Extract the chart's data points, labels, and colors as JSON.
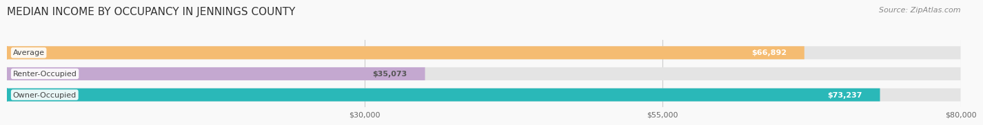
{
  "title": "MEDIAN INCOME BY OCCUPANCY IN JENNINGS COUNTY",
  "source": "Source: ZipAtlas.com",
  "categories": [
    "Owner-Occupied",
    "Renter-Occupied",
    "Average"
  ],
  "values": [
    73237,
    35073,
    66892
  ],
  "bar_colors": [
    "#2ab8b8",
    "#c4a8d0",
    "#f5bc72"
  ],
  "bar_bg_color": "#e4e4e4",
  "label_colors": [
    "#ffffff",
    "#555555",
    "#ffffff"
  ],
  "xlim": [
    0,
    80000
  ],
  "xticks": [
    30000,
    55000,
    80000
  ],
  "xtick_labels": [
    "$30,000",
    "$55,000",
    "$80,000"
  ],
  "title_fontsize": 11,
  "source_fontsize": 8,
  "bar_label_fontsize": 8,
  "cat_label_fontsize": 8,
  "tick_fontsize": 8,
  "background_color": "#f9f9f9",
  "bar_height": 0.62,
  "value_labels": [
    "$73,237",
    "$35,073",
    "$66,892"
  ]
}
